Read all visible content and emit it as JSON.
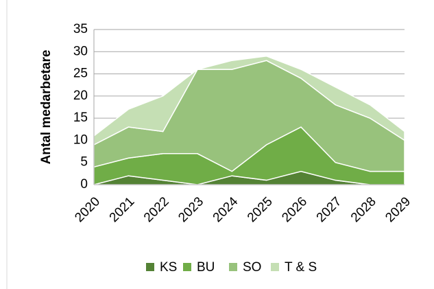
{
  "chart_data": {
    "type": "stacked_area",
    "y_label": "Antal medarbetare",
    "categories": [
      "2020",
      "2021",
      "2022",
      "2023",
      "2024",
      "2025",
      "2026",
      "2027",
      "2028",
      "2029"
    ],
    "series": [
      {
        "name": "KS",
        "color": "#548235",
        "values": [
          0,
          2,
          1,
          0,
          2,
          1,
          3,
          1,
          0,
          0
        ]
      },
      {
        "name": "BU",
        "color": "#70ad47",
        "values": [
          4,
          4,
          6,
          7,
          1,
          8,
          10,
          4,
          3,
          3
        ]
      },
      {
        "name": "SO",
        "color": "#98c27c",
        "values": [
          5,
          7,
          5,
          19,
          23,
          19,
          11,
          13,
          12,
          7
        ]
      },
      {
        "name": "T & S",
        "color": "#c5dfb4",
        "values": [
          2,
          4,
          8,
          0,
          2,
          1,
          2,
          4,
          3,
          2
        ]
      }
    ],
    "ylim": [
      0,
      35
    ],
    "yticks": [
      0,
      5,
      10,
      15,
      20,
      25,
      30,
      35
    ],
    "grid": true,
    "legend": "bottom"
  }
}
